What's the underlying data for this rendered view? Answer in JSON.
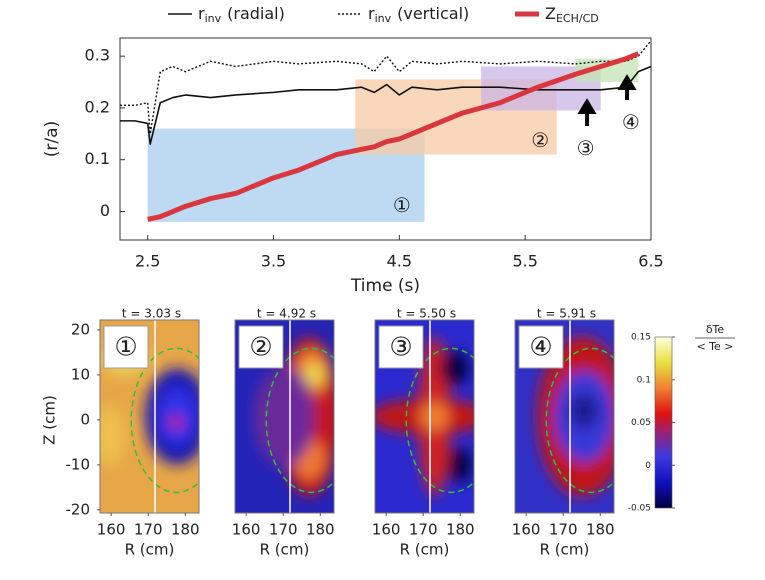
{
  "chart_data": [
    {
      "type": "line",
      "xlabel": "Time (s)",
      "ylabel": "(r/a)",
      "x": [
        2.28,
        2.4,
        2.5,
        2.52,
        2.6,
        2.7,
        2.8,
        3.0,
        3.2,
        3.5,
        3.7,
        4.0,
        4.2,
        4.3,
        4.4,
        4.5,
        4.6,
        4.8,
        5.0,
        5.3,
        5.6,
        5.9,
        6.1,
        6.3,
        6.4,
        6.5
      ],
      "xlim": [
        2.28,
        6.5
      ],
      "ylim": [
        -0.055,
        0.335
      ],
      "xticks": [
        2.5,
        3.5,
        4.5,
        5.5,
        6.5
      ],
      "yticks": [
        0,
        0.1,
        0.2,
        0.3
      ],
      "series": [
        {
          "name": "r",
          "subscript": "inv",
          "suffix": "(radial)",
          "color": "#111111",
          "style": "solid",
          "values": [
            0.175,
            0.175,
            0.17,
            0.13,
            0.21,
            0.22,
            0.225,
            0.22,
            0.225,
            0.23,
            0.235,
            0.235,
            0.24,
            0.23,
            0.245,
            0.225,
            0.24,
            0.235,
            0.24,
            0.24,
            0.235,
            0.235,
            0.235,
            0.24,
            0.27,
            0.28
          ]
        },
        {
          "name": "r",
          "subscript": "inv",
          "suffix": "(vertical)",
          "color": "#111111",
          "style": "dotted",
          "values": [
            0.205,
            0.205,
            0.21,
            0.15,
            0.27,
            0.28,
            0.27,
            0.29,
            0.28,
            0.29,
            0.285,
            0.29,
            0.285,
            0.27,
            0.3,
            0.27,
            0.29,
            0.285,
            0.29,
            0.285,
            0.29,
            0.285,
            0.29,
            0.29,
            0.3,
            0.33
          ]
        },
        {
          "name": "Z",
          "subscript": "ECH/CD",
          "suffix": "",
          "color": "#d9363e",
          "style": "thick",
          "values": [
            null,
            null,
            -0.015,
            -0.014,
            -0.01,
            0,
            0.01,
            0.025,
            0.035,
            0.065,
            0.08,
            0.11,
            0.12,
            0.125,
            0.135,
            0.14,
            0.15,
            0.17,
            0.19,
            0.21,
            0.24,
            0.265,
            0.28,
            0.295,
            0.305,
            null
          ]
        }
      ],
      "regions": [
        {
          "label": "①",
          "x": [
            2.5,
            4.7
          ],
          "y": [
            -0.02,
            0.16
          ],
          "color": "#a8cdee",
          "label_at": [
            4.52,
            0.01
          ]
        },
        {
          "label": "②",
          "x": [
            4.15,
            5.75
          ],
          "y": [
            0.11,
            0.255
          ],
          "color": "#f7c9a4",
          "label_at": [
            5.62,
            0.135
          ]
        },
        {
          "label": "③",
          "x": [
            5.15,
            6.1
          ],
          "y": [
            0.195,
            0.28
          ],
          "color": "#c9b6e4",
          "label_at": [
            5.98,
            0.12
          ]
        },
        {
          "label": "④",
          "x": [
            5.9,
            6.4
          ],
          "y": [
            0.25,
            0.295
          ],
          "color": "#c4e3b4",
          "label_at": [
            6.34,
            0.17
          ]
        }
      ]
    },
    {
      "type": "heatmap-panels",
      "xlabel": "R (cm)",
      "ylabel": "Z (cm)",
      "xlim": [
        157,
        183.7
      ],
      "ylim": [
        -20.7,
        22.2
      ],
      "xticks": [
        160,
        170,
        180
      ],
      "yticks": [
        20,
        10,
        0,
        -10,
        -20
      ],
      "panels": [
        {
          "title": "t = 3.03 s",
          "label": "①"
        },
        {
          "title": "t = 4.92 s",
          "label": "②"
        },
        {
          "title": "t = 5.50 s",
          "label": "③"
        },
        {
          "title": "t = 5.91 s",
          "label": "④"
        }
      ],
      "colorbar": {
        "lim": [
          -0.05,
          0.15
        ],
        "ticks": [
          0.15,
          0.1,
          0.05,
          0,
          -0.05
        ],
        "label_top": "δTe",
        "label_bottom": "< Te >"
      }
    }
  ]
}
